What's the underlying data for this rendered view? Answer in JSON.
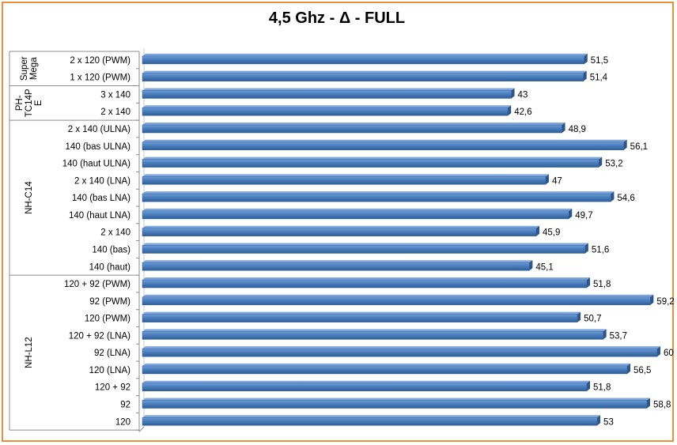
{
  "chart_data": {
    "type": "bar",
    "orientation": "horizontal",
    "title": "4,5 Ghz - Δ - FULL",
    "categories": [
      "2 x 120 (PWM)",
      "1 x 120 (PWM)",
      "3 x 140",
      "2 x 140",
      "2 x 140 (ULNA)",
      "140 (bas ULNA)",
      "140 (haut ULNA)",
      "2 x 140 (LNA)",
      "140 (bas LNA)",
      "140 (haut LNA)",
      "2 x 140",
      "140 (bas)",
      "140 (haut)",
      "120 + 92 (PWM)",
      "92 (PWM)",
      "120 (PWM)",
      "120 + 92 (LNA)",
      "92 (LNA)",
      "120 (LNA)",
      "120 + 92",
      "92",
      "120"
    ],
    "value_labels": [
      "51,5",
      "51,4",
      "43",
      "42,6",
      "48,9",
      "56,1",
      "53,2",
      "47",
      "54,6",
      "49,7",
      "45,9",
      "51,6",
      "45,1",
      "51,8",
      "59,2",
      "50,7",
      "53,7",
      "60",
      "56,5",
      "51,8",
      "58,8",
      "53"
    ],
    "values": [
      51.5,
      51.4,
      43,
      42.6,
      48.9,
      56.1,
      53.2,
      47,
      54.6,
      49.7,
      45.9,
      51.6,
      45.1,
      51.8,
      59.2,
      50.7,
      53.7,
      60,
      56.5,
      51.8,
      58.8,
      53
    ],
    "groups": [
      {
        "label": [
          "Super",
          "Mega"
        ],
        "count": 2
      },
      {
        "label": [
          "PH-",
          "TC14P",
          "E"
        ],
        "count": 2
      },
      {
        "label": [
          "NH-C14"
        ],
        "count": 9
      },
      {
        "label": [
          "NH-L12"
        ],
        "count": 9
      }
    ],
    "xlim": [
      0,
      60
    ],
    "grid": false,
    "legend": "none",
    "bar_color": "#4a7ebb"
  }
}
